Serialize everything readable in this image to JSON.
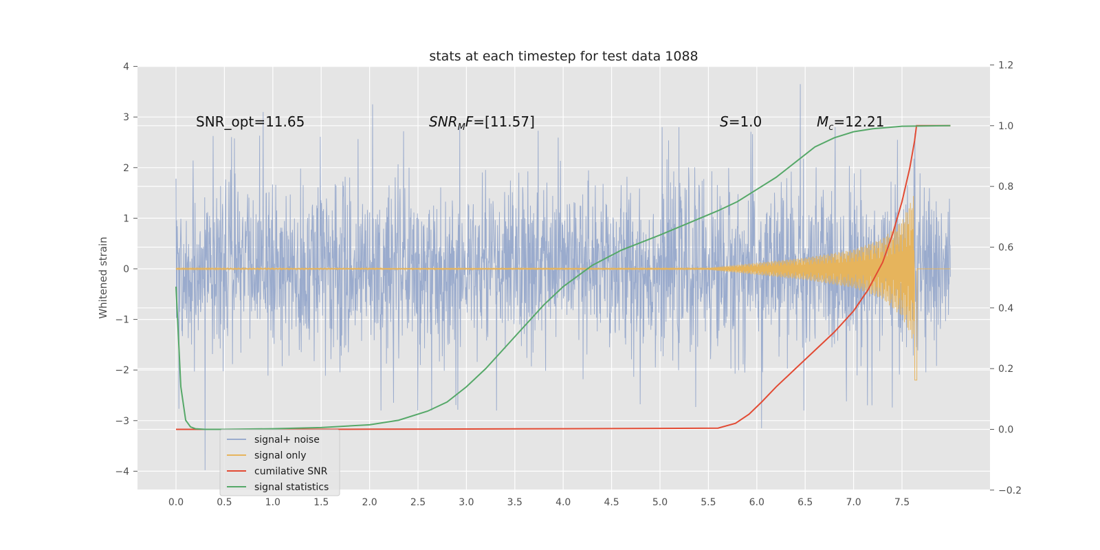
{
  "chart_data": {
    "type": "line",
    "title": "stats at each timestep for test data 1088",
    "ylabel": "Whitened strain",
    "xlim": [
      -0.4,
      8.4
    ],
    "ylim": [
      -4.35,
      4.0
    ],
    "y2lim": [
      -0.2,
      1.2
    ],
    "xticks": [
      0.0,
      0.5,
      1.0,
      1.5,
      2.0,
      2.5,
      3.0,
      3.5,
      4.0,
      4.5,
      5.0,
      5.5,
      6.0,
      6.5,
      7.0,
      7.5
    ],
    "xtick_labels": [
      "0.0",
      "0.5",
      "1.0",
      "1.5",
      "2.0",
      "2.5",
      "3.0",
      "3.5",
      "4.0",
      "4.5",
      "5.0",
      "5.5",
      "6.0",
      "6.5",
      "7.0",
      "7.5"
    ],
    "yticks": [
      -4,
      -3,
      -2,
      -1,
      0,
      1,
      2,
      3,
      4
    ],
    "ytick_labels": [
      "−4",
      "−3",
      "−2",
      "−1",
      "0",
      "1",
      "2",
      "3",
      "4"
    ],
    "y2ticks": [
      -0.2,
      0.0,
      0.2,
      0.4,
      0.6,
      0.8,
      1.0,
      1.2
    ],
    "y2tick_labels": [
      "−0.2",
      "0.0",
      "0.2",
      "0.4",
      "0.6",
      "0.8",
      "1.0",
      "1.2"
    ],
    "grid": true,
    "legend_position": "lower-left",
    "annotations": {
      "snr_opt": "SNR_opt=11.65",
      "snr_mf_base": "SNR",
      "snr_mf_sub": "M",
      "snr_mf_rest": "F=[11.57]",
      "s_var": "S",
      "s_rest": "=1.0",
      "mc_var": "M",
      "mc_sub": "c",
      "mc_rest": "=12.21"
    },
    "series": [
      {
        "name": "signal+ noise",
        "axis": "left",
        "color": "#9aabcd",
        "x_range": [
          0.0,
          8.0
        ],
        "typical_range": [
          -2.0,
          2.0
        ],
        "peaks": [
          [
            0.3,
            -3.98
          ],
          [
            6.45,
            3.65
          ],
          [
            2.03,
            3.25
          ],
          [
            0.9,
            3.1
          ],
          [
            6.05,
            -3.15
          ]
        ]
      },
      {
        "name": "signal only",
        "axis": "left",
        "color": "#e6b45c",
        "x_range": [
          0.0,
          8.0
        ],
        "envelope": [
          [
            0.0,
            0.01
          ],
          [
            5.5,
            0.02
          ],
          [
            6.0,
            0.12
          ],
          [
            6.5,
            0.22
          ],
          [
            7.0,
            0.38
          ],
          [
            7.3,
            0.6
          ],
          [
            7.5,
            0.95
          ],
          [
            7.62,
            1.45
          ],
          [
            7.65,
            -2.2
          ],
          [
            7.66,
            0.0
          ],
          [
            8.0,
            0.0
          ]
        ]
      },
      {
        "name": "cumilative SNR",
        "axis": "right",
        "color": "#e24a33",
        "x": [
          0.0,
          1.0,
          2.0,
          3.0,
          4.0,
          5.0,
          5.6,
          5.78,
          5.92,
          6.05,
          6.2,
          6.4,
          6.6,
          6.8,
          7.0,
          7.15,
          7.3,
          7.4,
          7.5,
          7.58,
          7.63,
          7.65,
          8.0
        ],
        "values": [
          0.0,
          0.0,
          0.0005,
          0.001,
          0.002,
          0.003,
          0.004,
          0.02,
          0.05,
          0.09,
          0.14,
          0.2,
          0.26,
          0.32,
          0.39,
          0.46,
          0.55,
          0.64,
          0.75,
          0.86,
          0.95,
          1.0,
          1.0
        ]
      },
      {
        "name": "signal statistics",
        "axis": "right",
        "color": "#55a868",
        "x": [
          0.0,
          0.05,
          0.1,
          0.15,
          0.2,
          0.3,
          0.5,
          1.0,
          1.5,
          2.0,
          2.3,
          2.6,
          2.8,
          3.0,
          3.2,
          3.4,
          3.6,
          3.8,
          4.0,
          4.3,
          4.6,
          5.0,
          5.3,
          5.6,
          5.8,
          6.0,
          6.2,
          6.4,
          6.6,
          6.8,
          7.0,
          7.2,
          7.5,
          8.0
        ],
        "values": [
          0.47,
          0.14,
          0.03,
          0.008,
          0.002,
          0.0,
          0.0,
          0.002,
          0.006,
          0.015,
          0.03,
          0.06,
          0.09,
          0.14,
          0.2,
          0.27,
          0.34,
          0.41,
          0.47,
          0.54,
          0.59,
          0.64,
          0.68,
          0.72,
          0.75,
          0.79,
          0.83,
          0.88,
          0.93,
          0.96,
          0.98,
          0.99,
          0.998,
          1.0
        ]
      }
    ]
  }
}
